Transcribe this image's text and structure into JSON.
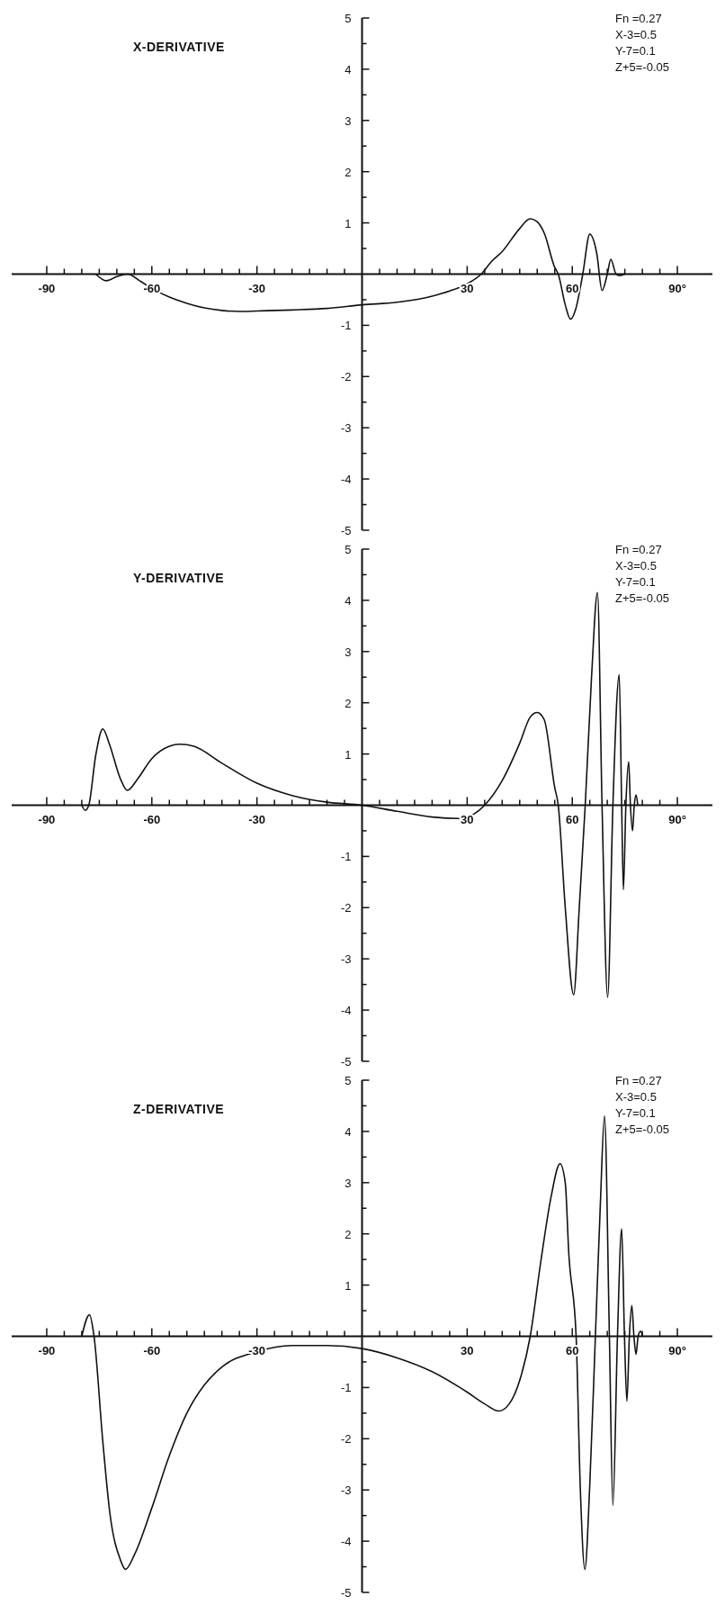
{
  "chart_data": [
    {
      "type": "line",
      "title": "X-DERIVATIVE",
      "annotations": [
        "Fn =0.27",
        "X-3=0.5",
        "Y-7=0.1",
        "Z+5=-0.05"
      ],
      "color": "#111111",
      "marker": "none",
      "grid": false,
      "legend": false,
      "x": [
        -76,
        -73,
        -70,
        -67,
        -63,
        -60,
        -55,
        -50,
        -45,
        -40,
        -35,
        -30,
        -20,
        -10,
        0,
        10,
        20,
        25,
        30,
        34,
        37,
        40,
        45,
        48,
        50,
        52,
        55,
        56,
        58,
        59.5,
        61,
        63,
        65,
        67,
        68.5,
        70,
        71,
        72.5,
        73.5,
        75
      ],
      "values": [
        0,
        -0.13,
        -0.05,
        0,
        -0.15,
        -0.28,
        -0.45,
        -0.57,
        -0.66,
        -0.71,
        -0.73,
        -0.72,
        -0.7,
        -0.67,
        -0.6,
        -0.55,
        -0.43,
        -0.33,
        -0.19,
        0,
        0.25,
        0.44,
        0.89,
        1.08,
        1.02,
        0.8,
        0.13,
        0,
        -0.6,
        -0.88,
        -0.68,
        0,
        0.78,
        0.4,
        -0.32,
        0,
        0.29,
        0,
        -0.03,
        0
      ],
      "xlim": [
        -100,
        100
      ],
      "ylim": [
        -5,
        5
      ],
      "xticks": [
        {
          "value": -90,
          "label": "-90"
        },
        {
          "value": -85,
          "label": null
        },
        {
          "value": -80,
          "label": null
        },
        {
          "value": -75,
          "label": null
        },
        {
          "value": -70,
          "label": null
        },
        {
          "value": -65,
          "label": null
        },
        {
          "value": -60,
          "label": "-60"
        },
        {
          "value": -55,
          "label": null
        },
        {
          "value": -50,
          "label": null
        },
        {
          "value": -45,
          "label": null
        },
        {
          "value": -40,
          "label": null
        },
        {
          "value": -35,
          "label": null
        },
        {
          "value": -30,
          "label": "-30"
        },
        {
          "value": -25,
          "label": null
        },
        {
          "value": -20,
          "label": null
        },
        {
          "value": -15,
          "label": null
        },
        {
          "value": -10,
          "label": null
        },
        {
          "value": -5,
          "label": null
        },
        {
          "value": 5,
          "label": null
        },
        {
          "value": 10,
          "label": null
        },
        {
          "value": 15,
          "label": null
        },
        {
          "value": 20,
          "label": null
        },
        {
          "value": 25,
          "label": null
        },
        {
          "value": 30,
          "label": "30"
        },
        {
          "value": 35,
          "label": null
        },
        {
          "value": 40,
          "label": null
        },
        {
          "value": 45,
          "label": null
        },
        {
          "value": 50,
          "label": null
        },
        {
          "value": 55,
          "label": null
        },
        {
          "value": 60,
          "label": "60"
        },
        {
          "value": 65,
          "label": null
        },
        {
          "value": 70,
          "label": null
        },
        {
          "value": 75,
          "label": null
        },
        {
          "value": 80,
          "label": null
        },
        {
          "value": 85,
          "label": null
        },
        {
          "value": 90,
          "label": "90°"
        }
      ],
      "yticks": [
        -5,
        {
          "value": -4.5,
          "label": null
        },
        -4,
        {
          "value": -3.5,
          "label": null
        },
        -3,
        {
          "value": -2.5,
          "label": null
        },
        -2,
        {
          "value": -1.5,
          "label": null
        },
        -1,
        {
          "value": -0.5,
          "label": null
        },
        {
          "value": 0.5,
          "label": null
        },
        1,
        {
          "value": 1.5,
          "label": null
        },
        2,
        {
          "value": 2.5,
          "label": null
        },
        3,
        {
          "value": 3.5,
          "label": null
        },
        4,
        {
          "value": 4.5,
          "label": null
        },
        5
      ]
    },
    {
      "type": "line",
      "title": "Y-DERIVATIVE",
      "annotations": [
        "Fn =0.27",
        "X-3=0.5",
        "Y-7=0.1",
        "Z+5=-0.05"
      ],
      "color": "#111111",
      "marker": "none",
      "grid": false,
      "legend": false,
      "x": [
        -80,
        -79,
        -78,
        -76,
        -74,
        -72,
        -69,
        -67,
        -64,
        -60,
        -55,
        -52,
        -48,
        -40,
        -30,
        -20,
        -10,
        0,
        10,
        20,
        28,
        32,
        35,
        40,
        45,
        48,
        50,
        52,
        55,
        56,
        58,
        60.4,
        62,
        63.7,
        65.5,
        67.2,
        68.5,
        70.1,
        71.6,
        73.4,
        74.1,
        74.6,
        75.3,
        76.1,
        76.6,
        77.2,
        77.7,
        78.2,
        78.7
      ],
      "values": [
        0,
        -0.1,
        0,
        0.98,
        1.49,
        1.17,
        0.52,
        0.29,
        0.52,
        0.91,
        1.15,
        1.19,
        1.15,
        0.82,
        0.43,
        0.19,
        0.06,
        0,
        -0.12,
        -0.23,
        -0.26,
        -0.17,
        0,
        0.48,
        1.21,
        1.72,
        1.81,
        1.67,
        0.34,
        0,
        -2.0,
        -3.7,
        -2.0,
        0,
        2.5,
        4.15,
        0,
        -3.75,
        0,
        2.55,
        0,
        -1.65,
        0,
        0.85,
        0,
        -0.5,
        0,
        0.2,
        0
      ],
      "xlim": [
        -100,
        100
      ],
      "ylim": [
        -5,
        5
      ],
      "xticks": [
        {
          "value": -90,
          "label": "-90"
        },
        {
          "value": -85,
          "label": null
        },
        {
          "value": -80,
          "label": null
        },
        {
          "value": -75,
          "label": null
        },
        {
          "value": -70,
          "label": null
        },
        {
          "value": -65,
          "label": null
        },
        {
          "value": -60,
          "label": "-60"
        },
        {
          "value": -55,
          "label": null
        },
        {
          "value": -50,
          "label": null
        },
        {
          "value": -45,
          "label": null
        },
        {
          "value": -40,
          "label": null
        },
        {
          "value": -35,
          "label": null
        },
        {
          "value": -30,
          "label": "-30"
        },
        {
          "value": -25,
          "label": null
        },
        {
          "value": -20,
          "label": null
        },
        {
          "value": -15,
          "label": null
        },
        {
          "value": -10,
          "label": null
        },
        {
          "value": -5,
          "label": null
        },
        {
          "value": 5,
          "label": null
        },
        {
          "value": 10,
          "label": null
        },
        {
          "value": 15,
          "label": null
        },
        {
          "value": 20,
          "label": null
        },
        {
          "value": 25,
          "label": null
        },
        {
          "value": 30,
          "label": "30"
        },
        {
          "value": 35,
          "label": null
        },
        {
          "value": 40,
          "label": null
        },
        {
          "value": 45,
          "label": null
        },
        {
          "value": 50,
          "label": null
        },
        {
          "value": 55,
          "label": null
        },
        {
          "value": 60,
          "label": "60"
        },
        {
          "value": 65,
          "label": null
        },
        {
          "value": 70,
          "label": null
        },
        {
          "value": 75,
          "label": null
        },
        {
          "value": 80,
          "label": null
        },
        {
          "value": 85,
          "label": null
        },
        {
          "value": 90,
          "label": "90°"
        }
      ],
      "yticks": [
        -5,
        {
          "value": -4.5,
          "label": null
        },
        -4,
        {
          "value": -3.5,
          "label": null
        },
        -3,
        {
          "value": -2.5,
          "label": null
        },
        -2,
        {
          "value": -1.5,
          "label": null
        },
        -1,
        {
          "value": -0.5,
          "label": null
        },
        {
          "value": 0.5,
          "label": null
        },
        1,
        {
          "value": 1.5,
          "label": null
        },
        2,
        {
          "value": 2.5,
          "label": null
        },
        3,
        {
          "value": 3.5,
          "label": null
        },
        4,
        {
          "value": 4.5,
          "label": null
        },
        5
      ]
    },
    {
      "type": "line",
      "title": "Z-DERIVATIVE",
      "annotations": [
        "Fn =0.27",
        "X-3=0.5",
        "Y-7=0.1",
        "Z+5=-0.05"
      ],
      "color": "#111111",
      "marker": "none",
      "grid": false,
      "legend": false,
      "x": [
        -80,
        -77.8,
        -76.5,
        -74,
        -72,
        -69,
        -67.5,
        -65,
        -60,
        -55,
        -50,
        -45,
        -40,
        -30,
        -20,
        -10,
        0,
        10,
        20,
        30,
        35,
        39,
        42,
        45,
        48,
        51,
        54,
        56.5,
        58,
        59,
        61.1,
        62.3,
        63.6,
        65,
        66.6,
        68,
        69.2,
        70.6,
        71.6,
        72.9,
        74.1,
        74.9,
        75.6,
        76.3,
        77,
        77.6,
        78.2,
        78.8,
        79.5,
        80
      ],
      "values": [
        0,
        0.42,
        0,
        -2.05,
        -3.44,
        -4.36,
        -4.55,
        -4.27,
        -3.35,
        -2.33,
        -1.5,
        -0.95,
        -0.6,
        -0.3,
        -0.18,
        -0.18,
        -0.24,
        -0.42,
        -0.69,
        -1.09,
        -1.32,
        -1.46,
        -1.32,
        -0.86,
        0,
        1.45,
        2.74,
        3.37,
        3.0,
        1.63,
        0,
        -2.98,
        -4.55,
        -2.9,
        0,
        2.55,
        4.3,
        0,
        -3.3,
        0,
        2.1,
        0,
        -1.27,
        0,
        0.6,
        0,
        -0.35,
        0,
        0.1,
        0
      ],
      "xlim": [
        -100,
        100
      ],
      "ylim": [
        -5,
        5
      ],
      "xticks": [
        {
          "value": -90,
          "label": "-90"
        },
        {
          "value": -85,
          "label": null
        },
        {
          "value": -80,
          "label": null
        },
        {
          "value": -75,
          "label": null
        },
        {
          "value": -70,
          "label": null
        },
        {
          "value": -65,
          "label": null
        },
        {
          "value": -60,
          "label": "-60"
        },
        {
          "value": -55,
          "label": null
        },
        {
          "value": -50,
          "label": null
        },
        {
          "value": -45,
          "label": null
        },
        {
          "value": -40,
          "label": null
        },
        {
          "value": -35,
          "label": null
        },
        {
          "value": -30,
          "label": "-30"
        },
        {
          "value": -25,
          "label": null
        },
        {
          "value": -20,
          "label": null
        },
        {
          "value": -15,
          "label": null
        },
        {
          "value": -10,
          "label": null
        },
        {
          "value": -5,
          "label": null
        },
        {
          "value": 5,
          "label": null
        },
        {
          "value": 10,
          "label": null
        },
        {
          "value": 15,
          "label": null
        },
        {
          "value": 20,
          "label": null
        },
        {
          "value": 25,
          "label": null
        },
        {
          "value": 30,
          "label": "30"
        },
        {
          "value": 35,
          "label": null
        },
        {
          "value": 40,
          "label": null
        },
        {
          "value": 45,
          "label": null
        },
        {
          "value": 50,
          "label": null
        },
        {
          "value": 55,
          "label": null
        },
        {
          "value": 60,
          "label": "60"
        },
        {
          "value": 65,
          "label": null
        },
        {
          "value": 70,
          "label": null
        },
        {
          "value": 75,
          "label": null
        },
        {
          "value": 80,
          "label": null
        },
        {
          "value": 85,
          "label": null
        },
        {
          "value": 90,
          "label": "90°"
        }
      ],
      "yticks": [
        -5,
        {
          "value": -4.5,
          "label": null
        },
        -4,
        {
          "value": -3.5,
          "label": null
        },
        -3,
        {
          "value": -2.5,
          "label": null
        },
        -2,
        {
          "value": -1.5,
          "label": null
        },
        -1,
        {
          "value": -0.5,
          "label": null
        },
        {
          "value": 0.5,
          "label": null
        },
        1,
        {
          "value": 1.5,
          "label": null
        },
        2,
        {
          "value": 2.5,
          "label": null
        },
        3,
        {
          "value": 3.5,
          "label": null
        },
        4,
        {
          "value": 4.5,
          "label": null
        },
        5
      ]
    }
  ]
}
